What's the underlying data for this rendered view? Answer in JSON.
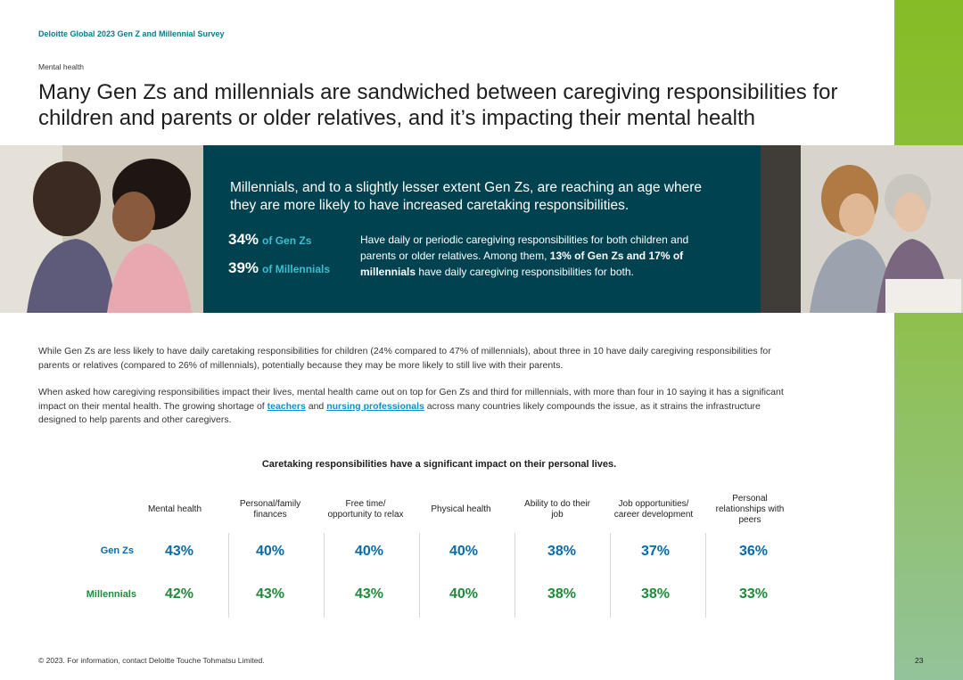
{
  "header": "Deloitte Global 2023 Gen Z and Millennial Survey",
  "section_label": "Mental health",
  "title": "Many Gen Zs and millennials are sandwiched between caregiving responsibilities for children and parents or older relatives, and it’s impacting their mental health",
  "banner": {
    "headline": "Millennials, and to a slightly lesser extent Gen Zs, are reaching an age where they are more likely to have increased caretaking responsibilities.",
    "stats": [
      {
        "value": "34%",
        "label": "of Gen Zs"
      },
      {
        "value": "39%",
        "label": "of Millennials"
      }
    ],
    "desc_a": "Have daily or periodic caregiving responsibilities for both children and parents or older relatives. Among them, ",
    "desc_b": "13% of Gen Zs and 17% of millennials",
    "desc_c": " have daily caregiving responsibilities for both."
  },
  "para1": "While Gen Zs are less likely to have daily caretaking responsibilities for children (24% compared to 47% of millennials), about three in 10 have daily caregiving responsibilities for parents or relatives (compared to 26% of millennials), potentially because they may be more likely to still live with their parents.",
  "para2": {
    "a": "When asked how caregiving responsibilities impact their lives, mental health came out on top for Gen Zs and third for millennials, with more than four in 10 saying it has a significant impact on their mental health. The growing shortage of ",
    "link1": "teachers",
    "b": " and ",
    "link2": "nursing professionals",
    "c": " across many countries likely compounds the issue, as it strains the infrastructure designed to help parents and other caregivers."
  },
  "table": {
    "title": "Caretaking responsibilities have a significant impact on their personal lives.",
    "columns": [
      "Mental health",
      "Personal/family finances",
      "Free time/ opportunity to relax",
      "Physical health",
      "Ability to do their job",
      "Job opportunities/ career development",
      "Personal relationships with peers"
    ],
    "rows": [
      {
        "label": "Gen Zs",
        "values": [
          "43%",
          "40%",
          "40%",
          "40%",
          "38%",
          "37%",
          "36%"
        ]
      },
      {
        "label": "Millennials",
        "values": [
          "42%",
          "43%",
          "43%",
          "40%",
          "38%",
          "38%",
          "33%"
        ]
      }
    ]
  },
  "footer": "© 2023. For information, contact Deloitte Touche Tohmatsu Limited.",
  "page_number": "23",
  "colors": {
    "teal_panel": "#00424f",
    "gen_z": "#0a6aa6",
    "millennials": "#1f8a3a",
    "green_bar": "#86bc25"
  }
}
